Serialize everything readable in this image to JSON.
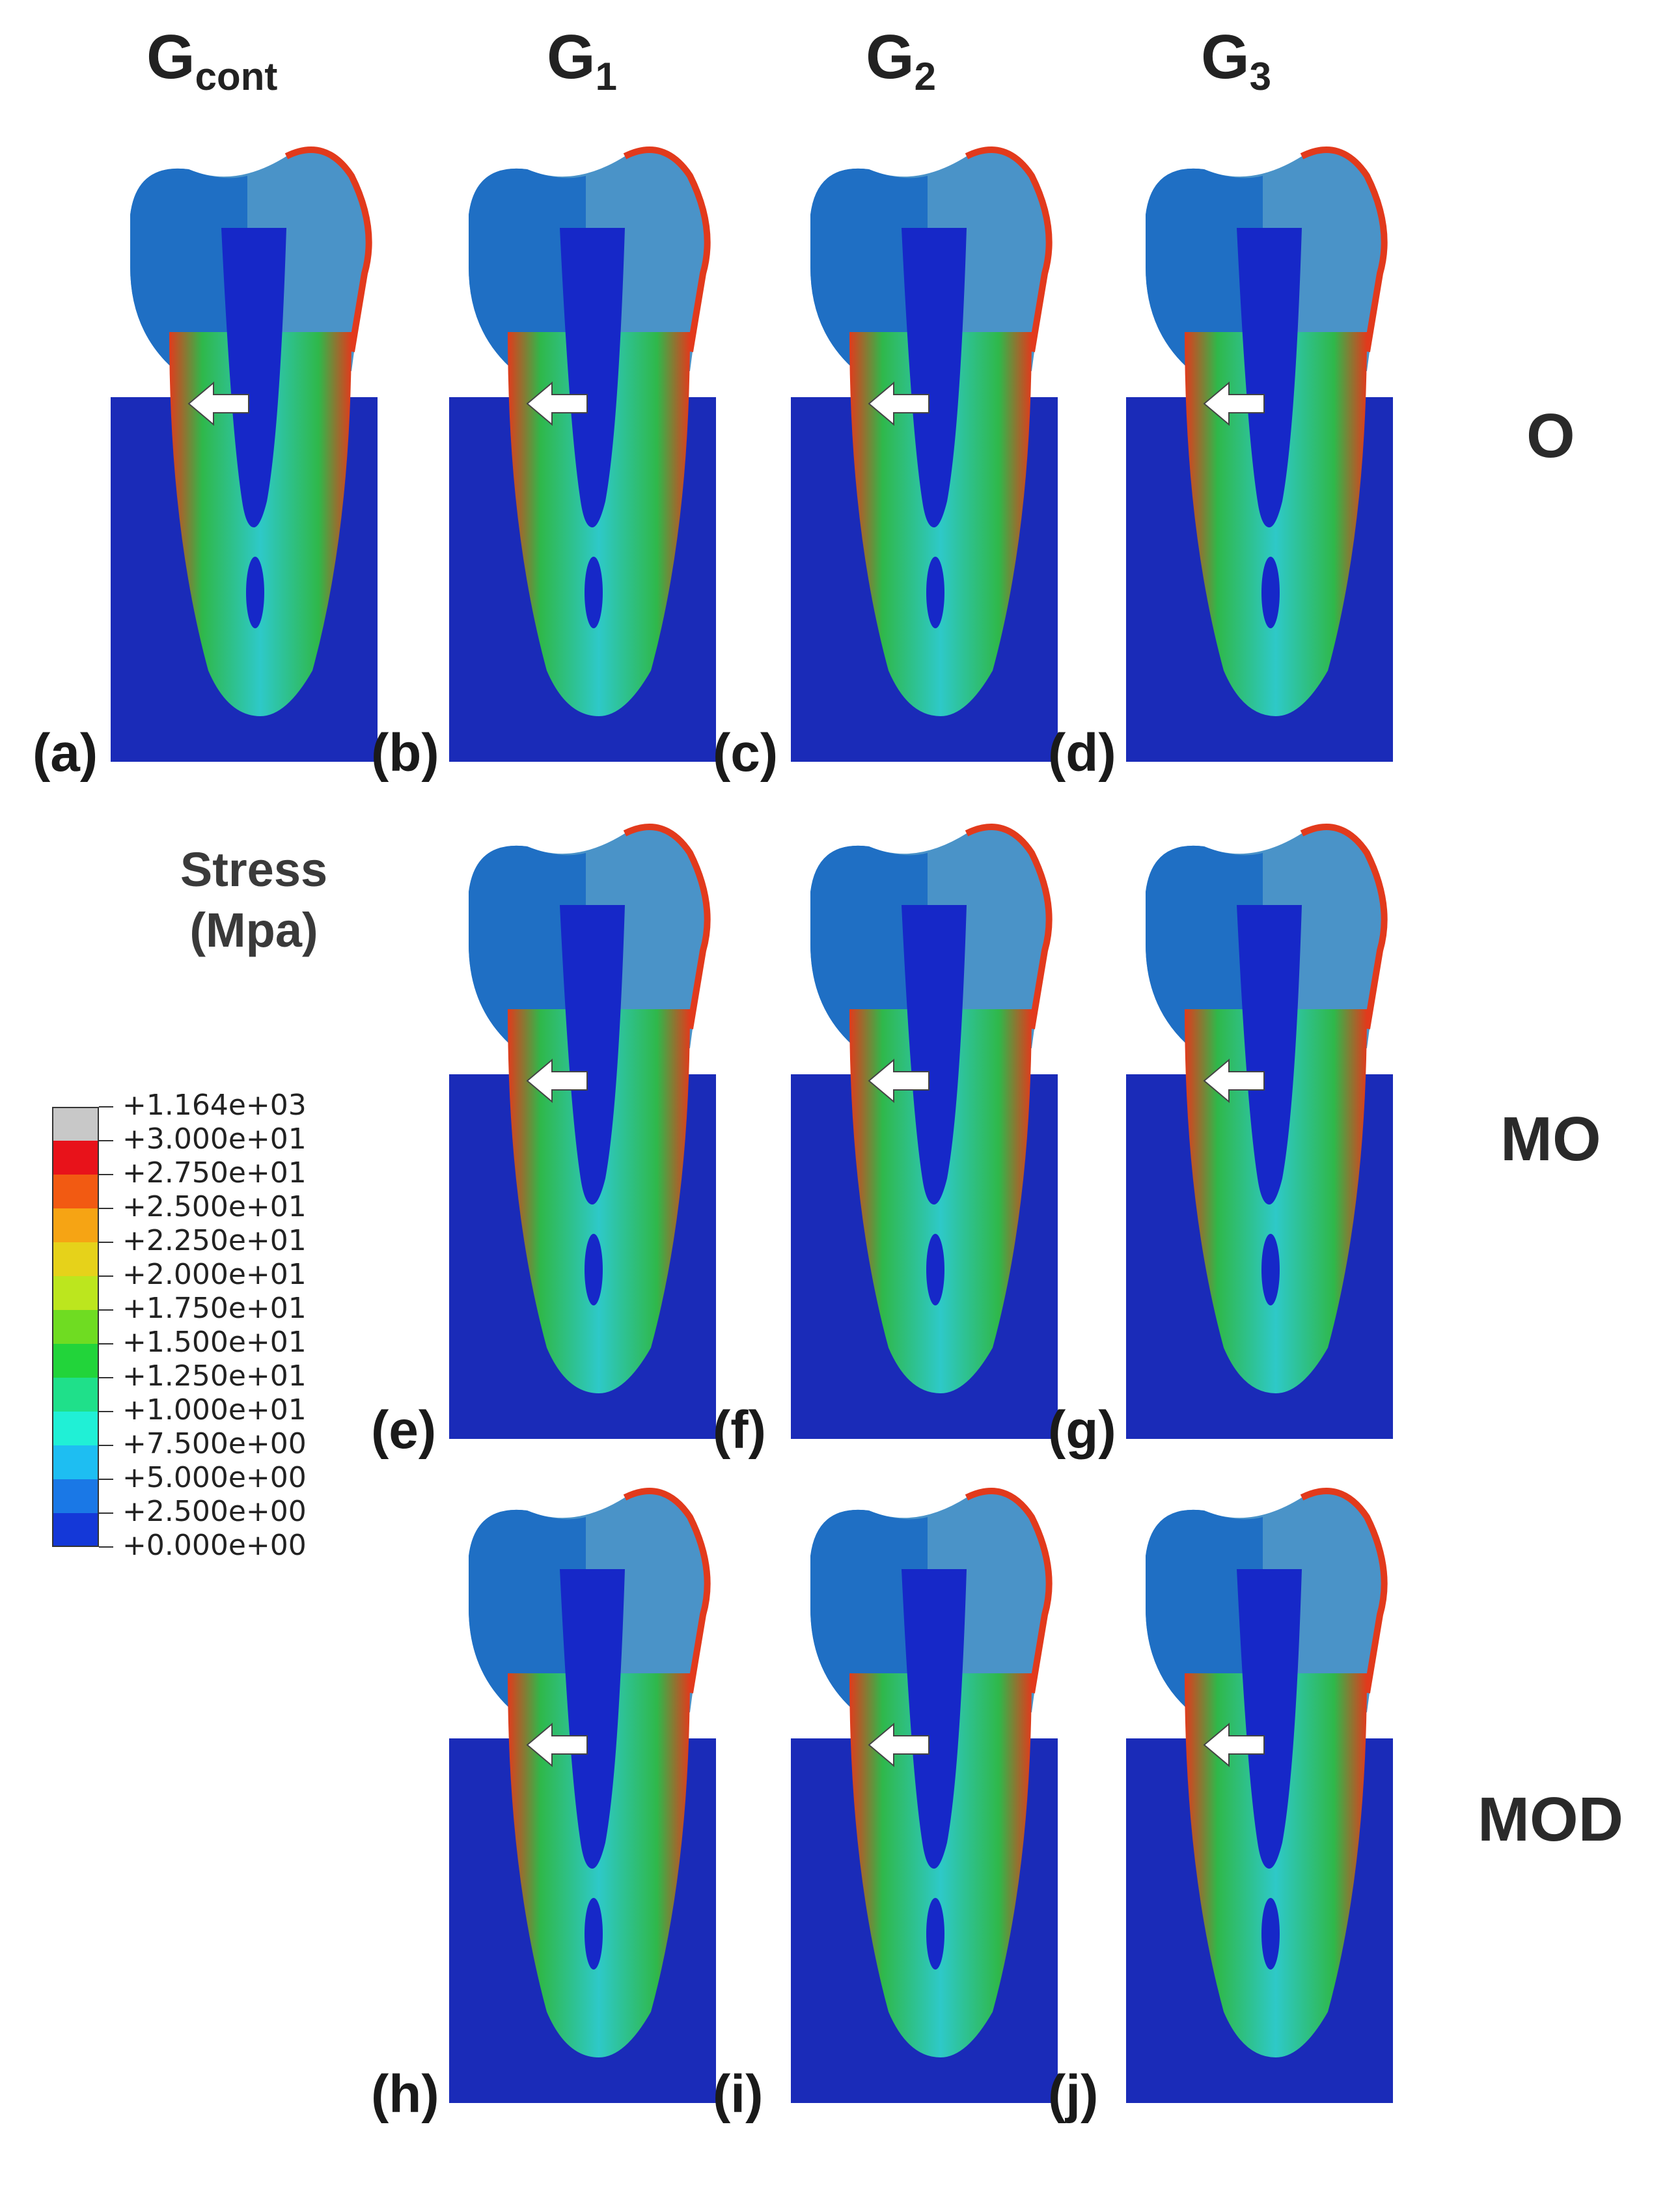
{
  "columns": [
    {
      "base": "G",
      "sub": "cont"
    },
    {
      "base": "G",
      "sub": "1"
    },
    {
      "base": "G",
      "sub": "2"
    },
    {
      "base": "G",
      "sub": "3"
    }
  ],
  "rows": [
    "O",
    "MO",
    "MOD"
  ],
  "legend": {
    "title_line1": "Stress",
    "title_line2": "(Mpa)",
    "levels": [
      {
        "label": "+1.164e+03",
        "color": "#c8c8c8"
      },
      {
        "label": "+3.000e+01",
        "color": "#e8121a"
      },
      {
        "label": "+2.750e+01",
        "color": "#f25a12"
      },
      {
        "label": "+2.500e+01",
        "color": "#f6a414"
      },
      {
        "label": "+2.250e+01",
        "color": "#e6d21a"
      },
      {
        "label": "+2.000e+01",
        "color": "#bce61e"
      },
      {
        "label": "+1.750e+01",
        "color": "#6fdc22"
      },
      {
        "label": "+1.500e+01",
        "color": "#22d43a"
      },
      {
        "label": "+1.250e+01",
        "color": "#1fe08a"
      },
      {
        "label": "+1.000e+01",
        "color": "#20f0d6"
      },
      {
        "label": "+7.500e+00",
        "color": "#1ebef2"
      },
      {
        "label": "+5.000e+00",
        "color": "#1a78e6"
      },
      {
        "label": "+2.500e+00",
        "color": "#1438d8"
      },
      {
        "label": "+0.000e+00",
        "color": ""
      }
    ]
  },
  "panels": [
    {
      "letter": "(a)",
      "row": "O",
      "column": "Gcont",
      "arrow_icon": "white-arrow-left-icon"
    },
    {
      "letter": "(b)",
      "row": "O",
      "column": "G1",
      "arrow_icon": "white-arrow-left-icon"
    },
    {
      "letter": "(c)",
      "row": "O",
      "column": "G2",
      "arrow_icon": "white-arrow-left-icon"
    },
    {
      "letter": "(d)",
      "row": "O",
      "column": "G3",
      "arrow_icon": "white-arrow-left-icon"
    },
    {
      "letter": "(e)",
      "row": "MO",
      "column": "G1",
      "arrow_icon": "white-arrow-left-icon"
    },
    {
      "letter": "(f)",
      "row": "MO",
      "column": "G2",
      "arrow_icon": "white-arrow-left-icon"
    },
    {
      "letter": "(g)",
      "row": "MO",
      "column": "G3",
      "arrow_icon": "white-arrow-left-icon"
    },
    {
      "letter": "(h)",
      "row": "MOD",
      "column": "G1",
      "arrow_icon": "white-arrow-left-icon"
    },
    {
      "letter": "(i)",
      "row": "MOD",
      "column": "G2",
      "arrow_icon": "white-arrow-left-icon"
    },
    {
      "letter": "(j)",
      "row": "MOD",
      "column": "G3",
      "arrow_icon": "white-arrow-left-icon"
    }
  ],
  "colors": {
    "bone": "#1a2bb8",
    "pulp": "#1628c8",
    "outer_shell": "#2fb84a",
    "mid_shell": "#2ec9c8",
    "hot_edge": "#e23a1c",
    "crown_blue": "#1f6fc4",
    "crown_cool": "#4a93c8"
  }
}
